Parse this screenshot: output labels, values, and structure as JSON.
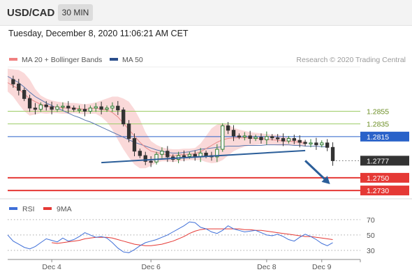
{
  "header": {
    "symbol": "USD/CAD",
    "interval": "30 MIN"
  },
  "datetime": "Tuesday, December 8, 2020 11:06:21 AM CET",
  "legend": {
    "ma20": {
      "label": "MA 20 + Bollinger Bands",
      "color": "#f08080"
    },
    "ma50": {
      "label": "MA 50",
      "color": "#2b4f8c"
    }
  },
  "credit": "Research © 2020 Trading Central",
  "colors": {
    "candle_up": "#2e7d32",
    "candle_down": "#333333",
    "bollinger_fill": "#f9d2d2",
    "resistance_line": "#9ccc65",
    "pivot_line": "#2962c9",
    "support_line": "#e53935",
    "current_price_bg": "#333333",
    "trend_arrow": "#2b5e99",
    "rsi_line": "#3f6fd8",
    "rsi_ma_line": "#e53935"
  },
  "chart_data": [
    {
      "type": "candlestick",
      "name": "price-panel",
      "ylim": [
        1.2718,
        1.2916
      ],
      "x_tick_labels": [
        "Dec 4",
        "Dec 6",
        "Dec 8",
        "Dec 9"
      ],
      "x_tick_positions": [
        8,
        26,
        47,
        57
      ],
      "x_range": [
        0,
        64
      ],
      "levels": [
        {
          "label": "1.2855",
          "value": 1.2855,
          "kind": "resistance"
        },
        {
          "label": "1.2835",
          "value": 1.2835,
          "kind": "resistance"
        },
        {
          "label": "1.2815",
          "value": 1.2815,
          "kind": "pivot"
        },
        {
          "label": "1.2777",
          "value": 1.2777,
          "kind": "current"
        },
        {
          "label": "1.2750",
          "value": 1.275,
          "kind": "support"
        },
        {
          "label": "1.2730",
          "value": 1.273,
          "kind": "support"
        }
      ],
      "close": [
        1.2905,
        1.2898,
        1.2888,
        1.2875,
        1.286,
        1.2858,
        1.2865,
        1.2862,
        1.2858,
        1.2862,
        1.2863,
        1.286,
        1.2858,
        1.2858,
        1.2855,
        1.286,
        1.2862,
        1.2858,
        1.286,
        1.2863,
        1.2857,
        1.2835,
        1.2812,
        1.2792,
        1.2785,
        1.2776,
        1.2775,
        1.2787,
        1.2792,
        1.2783,
        1.2779,
        1.2785,
        1.2784,
        1.2787,
        1.2783,
        1.2789,
        1.2785,
        1.2783,
        1.2795,
        1.2832,
        1.2825,
        1.2816,
        1.2815,
        1.2816,
        1.2812,
        1.2814,
        1.281,
        1.2815,
        1.2813,
        1.2812,
        1.2808,
        1.2812,
        1.2809,
        1.2806,
        1.2804,
        1.2805,
        1.2802,
        1.2805,
        1.2798,
        1.2777
      ],
      "ma50": [
        1.291,
        1.2905,
        1.29,
        1.2893,
        1.2885,
        1.2878,
        1.2873,
        1.2868,
        1.2864,
        1.286,
        1.2856,
        1.2852,
        1.2848,
        1.2845,
        1.2841,
        1.2838,
        1.2834,
        1.283,
        1.2826,
        1.2822,
        1.2818,
        1.2814,
        1.281,
        1.2806,
        1.2803,
        1.28,
        1.2797,
        1.2794,
        1.2792,
        1.279,
        1.2789,
        1.2789,
        1.279,
        1.2791,
        1.2793,
        1.2795,
        1.2796,
        1.2797,
        1.2798,
        1.2799,
        1.28,
        1.28,
        1.28,
        1.2801,
        1.2801,
        1.2801,
        1.2801,
        1.2802,
        1.2802,
        1.2802,
        1.2802,
        1.2802,
        1.2801,
        1.2801,
        1.28,
        1.28,
        1.28,
        1.2799,
        1.2799
      ],
      "ma20": [
        1.29,
        1.2895,
        1.289,
        1.2882,
        1.2875,
        1.287,
        1.2866,
        1.2863,
        1.2862,
        1.2861,
        1.286,
        1.286,
        1.286,
        1.2859,
        1.2858,
        1.2859,
        1.286,
        1.2858,
        1.2857,
        1.2853,
        1.2846,
        1.2836,
        1.2826,
        1.2816,
        1.2806,
        1.2798,
        1.2792,
        1.279,
        1.2788,
        1.2786,
        1.2785,
        1.2786,
        1.2787,
        1.2787,
        1.2788,
        1.2791,
        1.2796,
        1.2801,
        1.2806,
        1.281,
        1.2812,
        1.2813,
        1.2813,
        1.2813,
        1.2813,
        1.2812,
        1.2812,
        1.2811,
        1.281,
        1.2809,
        1.2808,
        1.2808,
        1.2807,
        1.2806,
        1.2804
      ],
      "bollinger_upper": [
        1.2922,
        1.2921,
        1.292,
        1.2915,
        1.2905,
        1.289,
        1.288,
        1.2875,
        1.2872,
        1.287,
        1.2869,
        1.2868,
        1.2868,
        1.2867,
        1.2866,
        1.2867,
        1.2869,
        1.2872,
        1.2875,
        1.2878,
        1.2878,
        1.2875,
        1.287,
        1.2858,
        1.2842,
        1.2822,
        1.2808,
        1.2802,
        1.2798,
        1.2796,
        1.2795,
        1.2795,
        1.2796,
        1.2796,
        1.2797,
        1.2804,
        1.2816,
        1.2828,
        1.2834,
        1.2836,
        1.2834,
        1.2829,
        1.2826,
        1.2824,
        1.2822,
        1.2821,
        1.282,
        1.2819,
        1.2818,
        1.2818,
        1.2816,
        1.2814,
        1.2811,
        1.281,
        1.2808
      ],
      "bollinger_lower": [
        1.2886,
        1.2878,
        1.2866,
        1.2855,
        1.2848,
        1.285,
        1.2852,
        1.2851,
        1.2852,
        1.2852,
        1.2851,
        1.2851,
        1.2852,
        1.2851,
        1.285,
        1.2851,
        1.2851,
        1.2846,
        1.2838,
        1.2826,
        1.281,
        1.2795,
        1.2782,
        1.2771,
        1.2765,
        1.2765,
        1.2769,
        1.2774,
        1.2776,
        1.2776,
        1.2775,
        1.2776,
        1.2777,
        1.2778,
        1.2778,
        1.2778,
        1.2775,
        1.2773,
        1.2774,
        1.2778,
        1.2785,
        1.2792,
        1.2796,
        1.2799,
        1.2801,
        1.2802,
        1.2803,
        1.2803,
        1.2802,
        1.2801,
        1.2801,
        1.2801,
        1.2801,
        1.2801,
        1.28
      ],
      "trendline": {
        "x": [
          17,
          54
        ],
        "y": [
          1.2774,
          1.2793
        ]
      },
      "projection_arrow": {
        "x": [
          54,
          58.5
        ],
        "y": [
          1.2777,
          1.274
        ]
      }
    },
    {
      "type": "line",
      "name": "rsi-panel",
      "legend": [
        "RSI",
        "9MA"
      ],
      "ylim": [
        20,
        78
      ],
      "yticks": [
        30,
        50,
        70
      ],
      "ytick_labels": [
        "30",
        "50",
        "70"
      ],
      "series": [
        {
          "name": "RSI",
          "values": [
            50,
            42,
            38,
            34,
            32,
            35,
            40,
            45,
            43,
            41,
            46,
            42,
            44,
            48,
            53,
            50,
            47,
            48,
            46,
            40,
            33,
            28,
            27,
            31,
            36,
            40,
            42,
            44,
            47,
            50,
            54,
            58,
            62,
            67,
            66,
            60,
            58,
            54,
            52,
            56,
            62,
            58,
            56,
            54,
            55,
            56,
            53,
            50,
            49,
            51,
            48,
            44,
            42,
            47,
            51,
            48,
            44,
            39,
            36,
            40
          ]
        },
        {
          "name": "9MA",
          "values": [
            null,
            null,
            null,
            null,
            null,
            null,
            null,
            null,
            40,
            39,
            40,
            41,
            42,
            43,
            45,
            46,
            47,
            47,
            47,
            46,
            44,
            42,
            40,
            38,
            37,
            36,
            36,
            37,
            38,
            40,
            42,
            45,
            48,
            52,
            55,
            57,
            58,
            58,
            58,
            58,
            58,
            58,
            58,
            57,
            57,
            56,
            56,
            55,
            54,
            53,
            52,
            51,
            50,
            49,
            48,
            48,
            47,
            46,
            45,
            44
          ]
        }
      ]
    }
  ]
}
